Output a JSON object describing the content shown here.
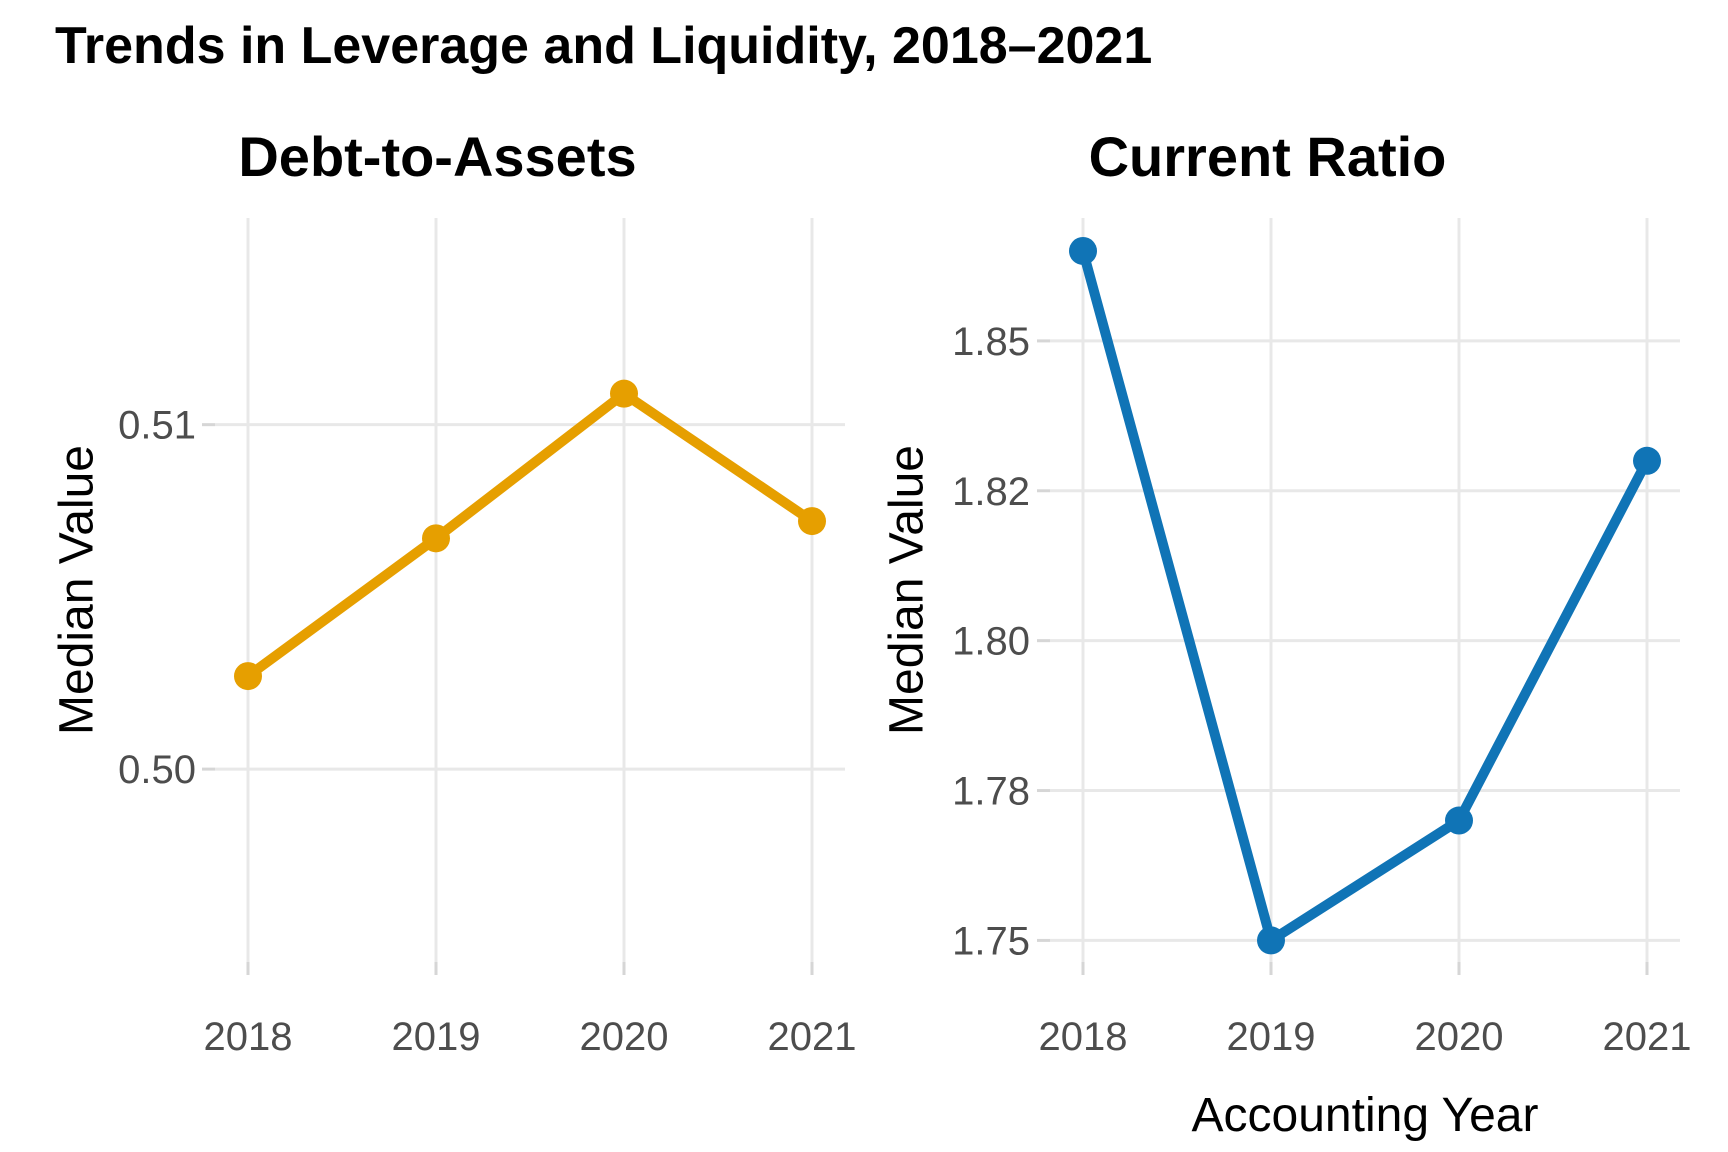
{
  "chart_data": {
    "type": "line",
    "title": "Trends in Leverage and Liquidity, 2018–2021",
    "categories": [
      "2018",
      "2019",
      "2020",
      "2021"
    ],
    "xlabel": "Accounting Year",
    "grid": "major-only",
    "legend": "none",
    "background": "#FFFFFF",
    "panels": [
      {
        "title": "Debt-to-Assets",
        "ylabel": "Median Value",
        "xlabel": "",
        "series": {
          "name": "Debt-to-Assets median",
          "color": "#E69F00",
          "values": [
            0.5027,
            0.5067,
            0.5109,
            0.5072
          ]
        },
        "y_ticks": [
          {
            "value": 0.5,
            "label": "0.50"
          },
          {
            "value": 0.51,
            "label": "0.51"
          }
        ],
        "ylim": [
          0.4944,
          0.516
        ]
      },
      {
        "title": "Current Ratio",
        "ylabel": "Median Value",
        "xlabel": "Accounting Year",
        "series": {
          "name": "Current Ratio median",
          "color": "#1074B6",
          "values": [
            1.865,
            1.75,
            1.77,
            1.83
          ]
        },
        "y_ticks": [
          {
            "value": 1.75,
            "label": "1.75"
          },
          {
            "value": 1.775,
            "label": "1.78"
          },
          {
            "value": 1.8,
            "label": "1.80"
          },
          {
            "value": 1.825,
            "label": "1.82"
          },
          {
            "value": 1.85,
            "label": "1.85"
          }
        ],
        "ylim": [
          1.7464,
          1.8705
        ]
      }
    ],
    "styles": {
      "grid_color": "#E8E8E8",
      "tick_color": "#D6D6D6",
      "tick_label_color": "#4D4D4D",
      "title_color": "#000000"
    }
  }
}
